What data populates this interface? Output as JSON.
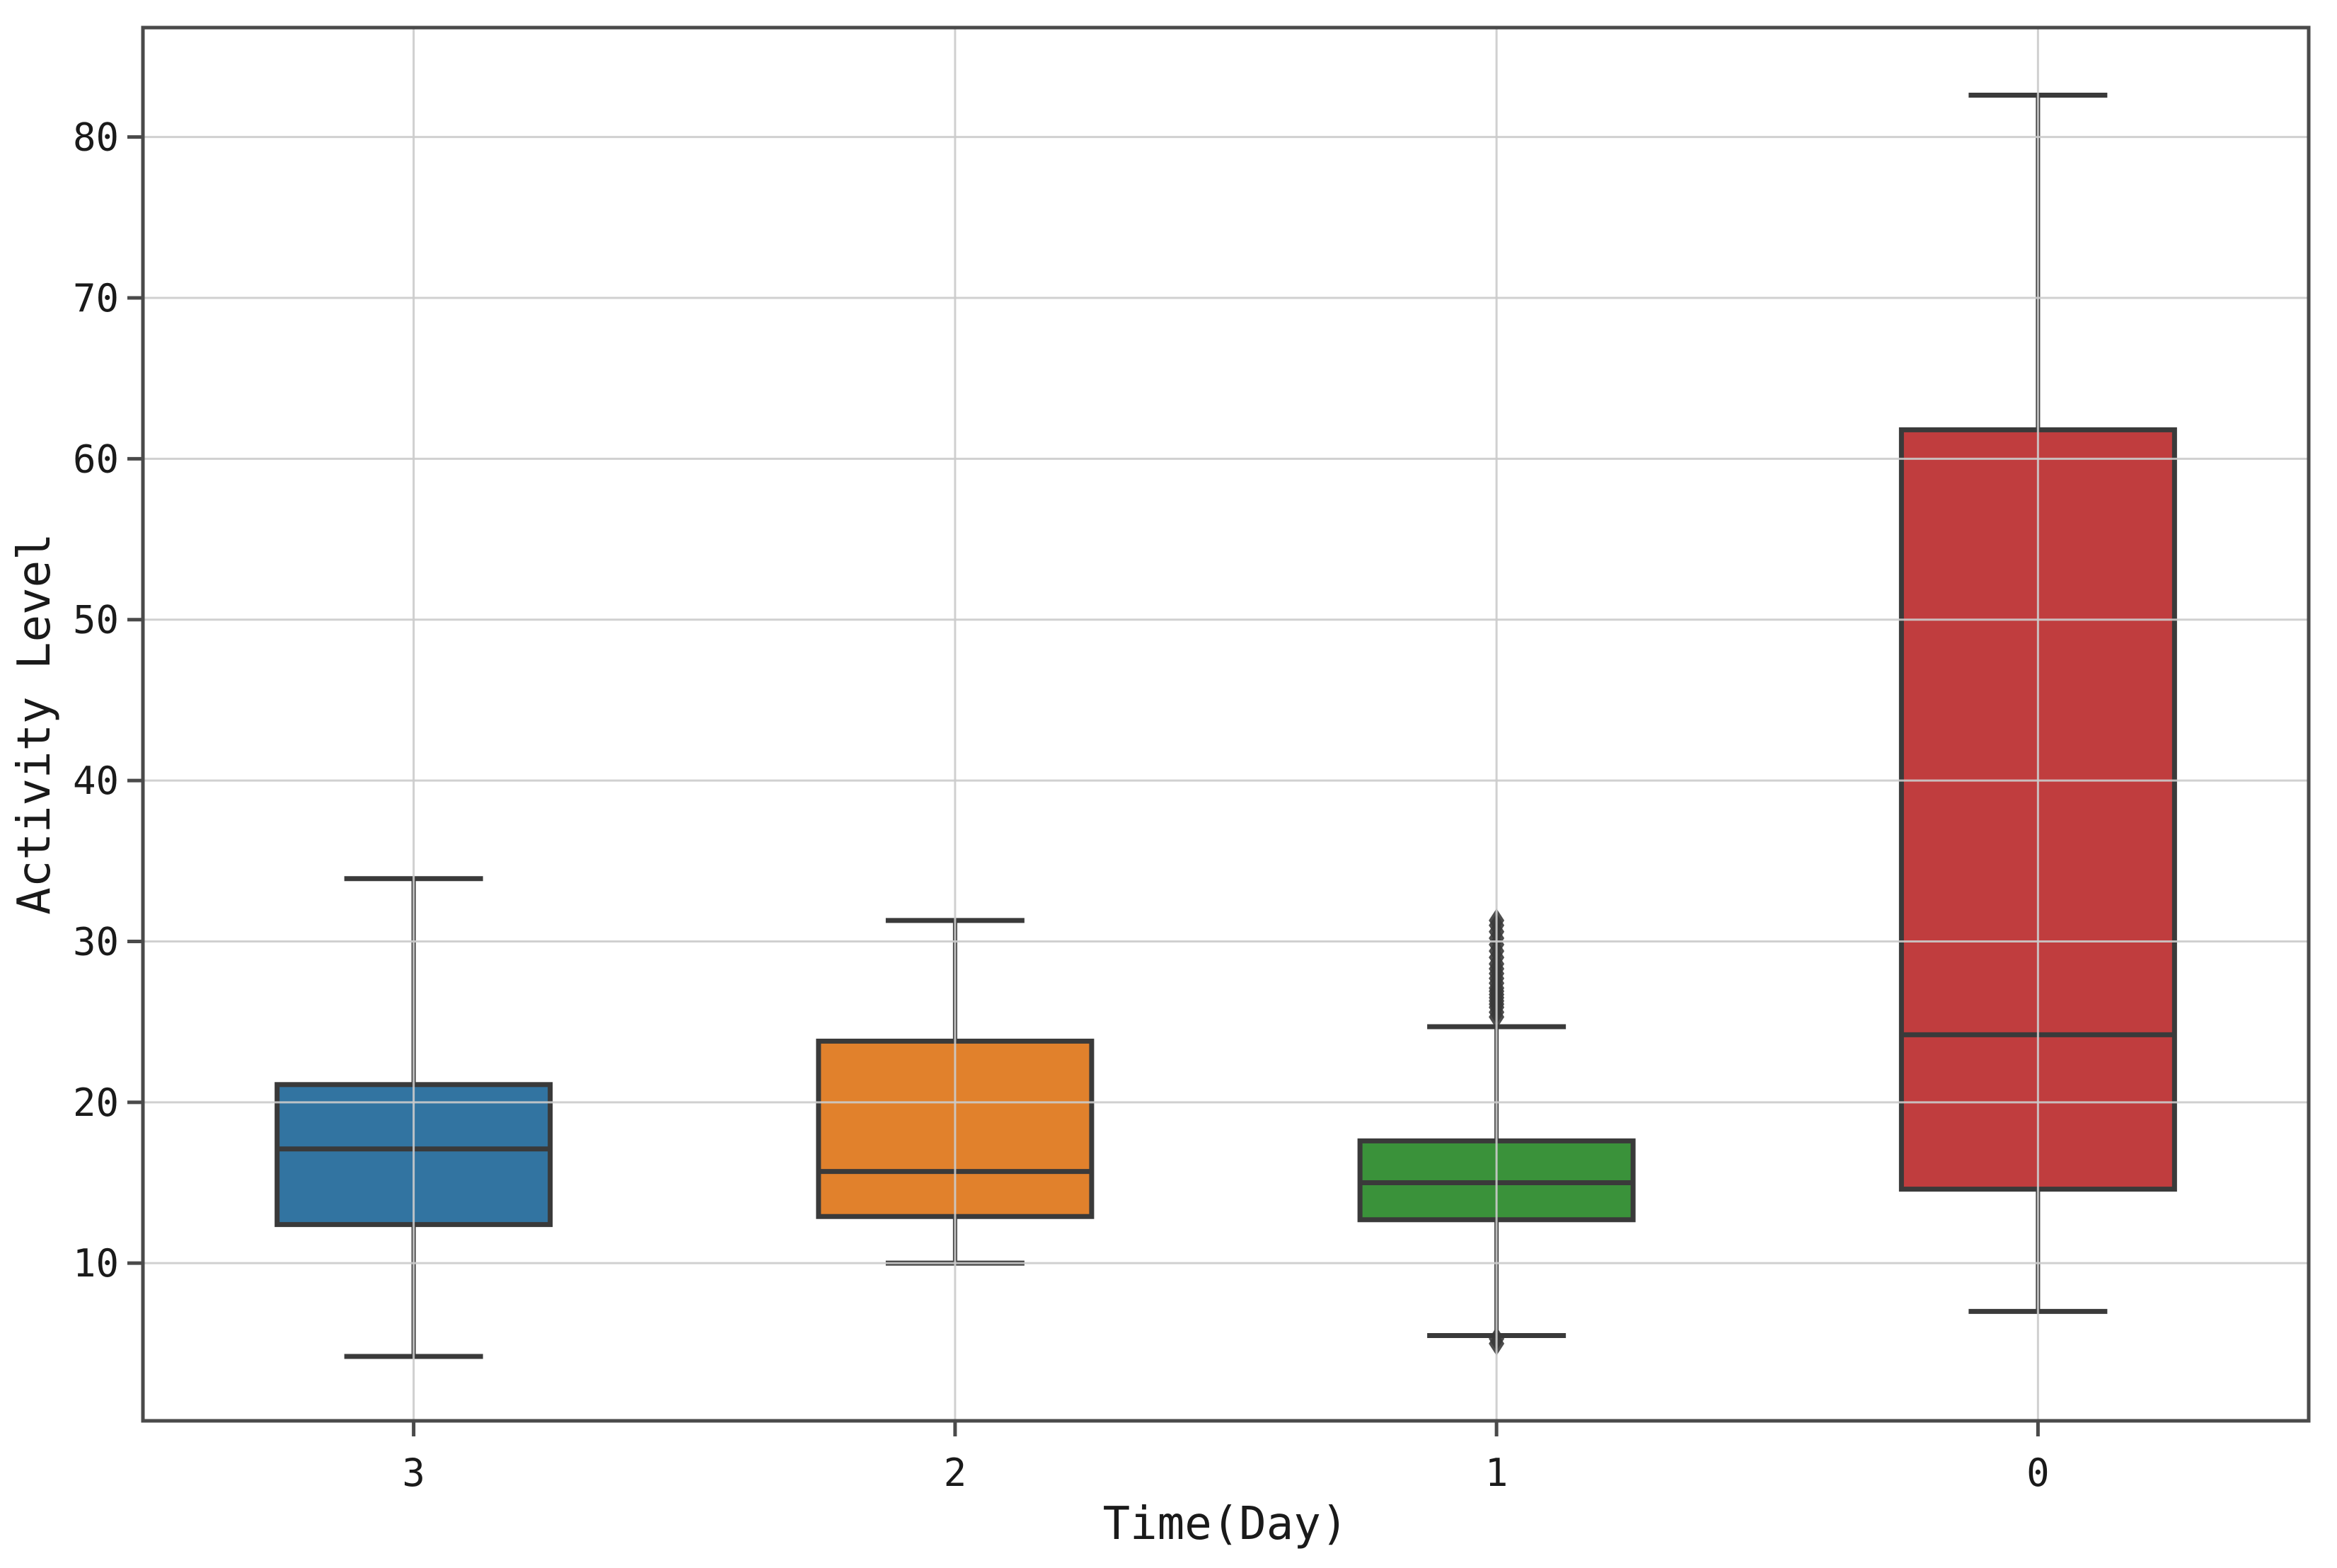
{
  "figure": {
    "background": "#ffffff"
  },
  "chart_data": {
    "type": "box",
    "title": "",
    "xlabel": "Time(Day)",
    "ylabel": "Activity Level",
    "categories": [
      "3",
      "2",
      "1",
      "0"
    ],
    "ylim": [
      0.2,
      86.8
    ],
    "yticks": [
      10,
      20,
      30,
      40,
      50,
      60,
      70,
      80
    ],
    "grid": true,
    "grid_position": "above",
    "legend": "none",
    "boxes": [
      {
        "category": "3",
        "color": "#3274a1",
        "whisker_low": 4.2,
        "q1": 12.4,
        "median": 17.1,
        "q3": 21.1,
        "whisker_high": 33.9,
        "outliers": []
      },
      {
        "category": "2",
        "color": "#e1812c",
        "whisker_low": 10.0,
        "q1": 12.9,
        "median": 15.7,
        "q3": 23.8,
        "whisker_high": 31.3,
        "outliers": []
      },
      {
        "category": "1",
        "color": "#3a923a",
        "whisker_low": 5.5,
        "q1": 12.7,
        "median": 15.0,
        "q3": 17.6,
        "whisker_high": 24.7,
        "outliers": [
          25.3,
          25.6,
          25.9,
          26.1,
          26.3,
          26.5,
          26.7,
          26.9,
          27.1,
          27.4,
          27.7,
          28.0,
          28.3,
          28.6,
          29.0,
          29.4,
          29.8,
          30.2,
          30.6,
          31.0,
          31.3,
          5.3,
          5.0
        ]
      },
      {
        "category": "0",
        "color": "#c03d3e",
        "whisker_low": 7.0,
        "q1": 14.6,
        "median": 24.2,
        "q3": 61.8,
        "whisker_high": 82.6,
        "outliers": []
      }
    ],
    "styles": {
      "box_edge_color": "#3a3a3a",
      "median_color": "#3a3a3a",
      "flier_color": "#3a3a3a",
      "grid_color": "#cbcbcb",
      "spine_color": "#4a4a4a",
      "tick_color": "#4a4a4a",
      "label_color": "#1a1a1a"
    }
  }
}
